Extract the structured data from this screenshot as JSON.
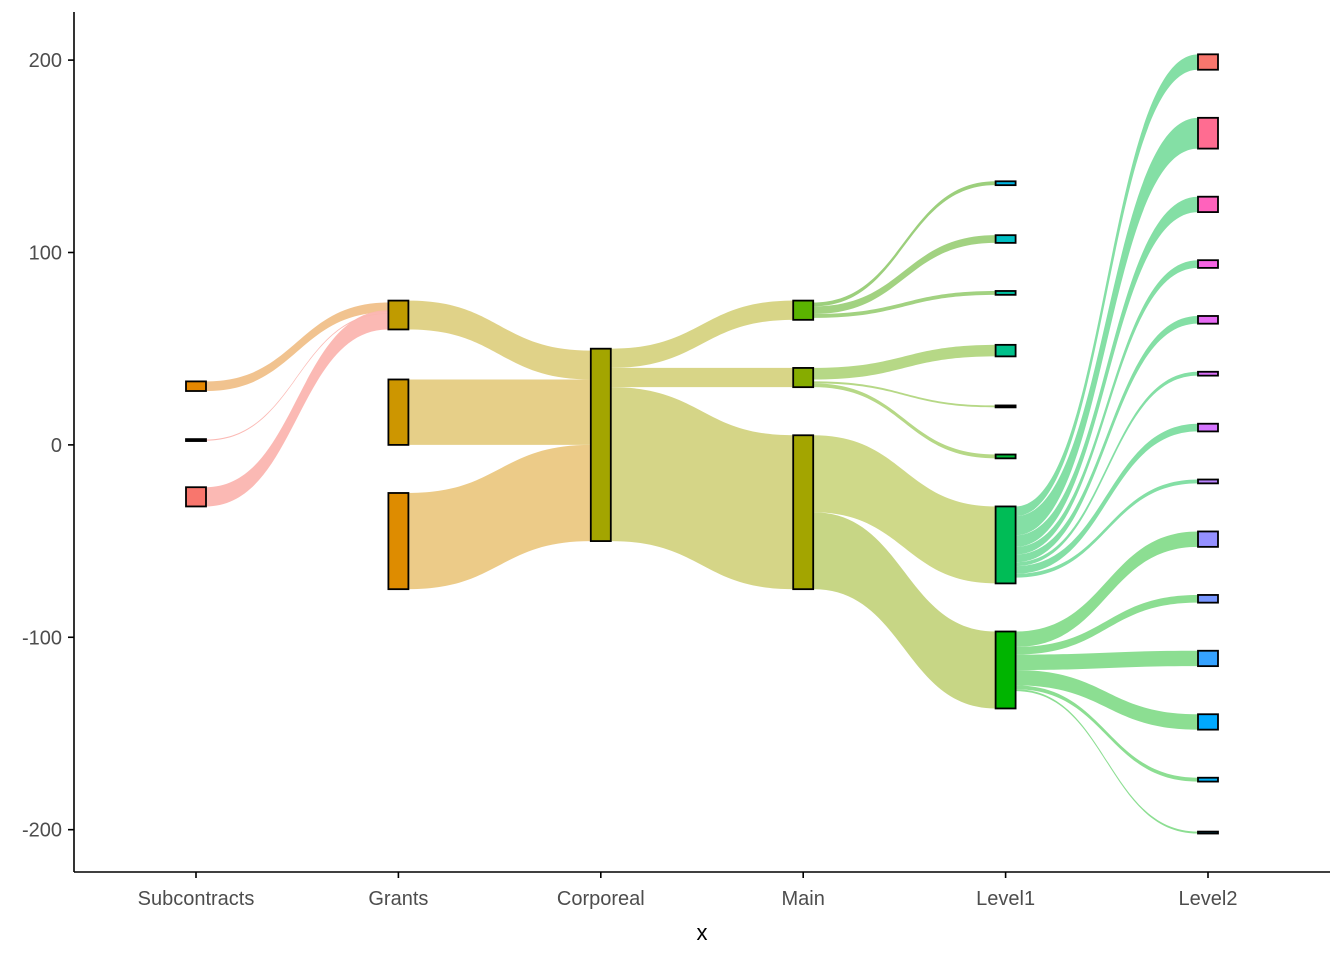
{
  "chart_data": {
    "type": "sankey",
    "title": "",
    "xlabel": "x",
    "ylabel": "",
    "ylim": [
      -222,
      225
    ],
    "y_ticks": [
      200,
      100,
      0,
      -100,
      -200
    ],
    "y_tick_labels": [
      "200",
      "100",
      "0",
      "-100",
      "-200"
    ],
    "stages": [
      "Subcontracts",
      "Grants",
      "Corporeal",
      "Main",
      "Level1",
      "Level2"
    ],
    "grid": false,
    "legend": "none",
    "nodes": [
      {
        "id": "s1",
        "stage": 0,
        "ymin": 28,
        "ymax": 33,
        "color": "#E58700"
      },
      {
        "id": "s2",
        "stage": 0,
        "ymin": 2,
        "ymax": 3,
        "color": "#000000"
      },
      {
        "id": "s3",
        "stage": 0,
        "ymin": -32,
        "ymax": -22,
        "color": "#F8766D"
      },
      {
        "id": "g1",
        "stage": 1,
        "ymin": 60,
        "ymax": 75,
        "color": "#C09B00"
      },
      {
        "id": "g2",
        "stage": 1,
        "ymin": 0,
        "ymax": 34,
        "color": "#CD9600"
      },
      {
        "id": "g3",
        "stage": 1,
        "ymin": -75,
        "ymax": -25,
        "color": "#DE8C00"
      },
      {
        "id": "c1",
        "stage": 2,
        "ymin": -50,
        "ymax": 50,
        "color": "#A3A500"
      },
      {
        "id": "m1",
        "stage": 3,
        "ymin": 65,
        "ymax": 75,
        "color": "#5BB300"
      },
      {
        "id": "m2",
        "stage": 3,
        "ymin": 30,
        "ymax": 40,
        "color": "#86AC00"
      },
      {
        "id": "m3",
        "stage": 3,
        "ymin": -75,
        "ymax": 5,
        "color": "#A3A500"
      },
      {
        "id": "l1a",
        "stage": 4,
        "ymin": 135,
        "ymax": 137,
        "color": "#00B8E7"
      },
      {
        "id": "l1b",
        "stage": 4,
        "ymin": 105,
        "ymax": 109,
        "color": "#00BFC4"
      },
      {
        "id": "l1c",
        "stage": 4,
        "ymin": 78,
        "ymax": 80,
        "color": "#00C1A3"
      },
      {
        "id": "l1d",
        "stage": 4,
        "ymin": 46,
        "ymax": 52,
        "color": "#00C08B"
      },
      {
        "id": "l1e",
        "stage": 4,
        "ymin": 19.5,
        "ymax": 20.5,
        "color": "#000000"
      },
      {
        "id": "l1f",
        "stage": 4,
        "ymin": -7,
        "ymax": -5,
        "color": "#00BA38"
      },
      {
        "id": "l1g",
        "stage": 4,
        "ymin": -72,
        "ymax": -32,
        "color": "#00BC56"
      },
      {
        "id": "l1h",
        "stage": 4,
        "ymin": -137,
        "ymax": -97,
        "color": "#00B400"
      },
      {
        "id": "l2a",
        "stage": 5,
        "ymin": 195,
        "ymax": 203,
        "color": "#F8766D"
      },
      {
        "id": "l2b",
        "stage": 5,
        "ymin": 154,
        "ymax": 170,
        "color": "#FF6C91"
      },
      {
        "id": "l2c",
        "stage": 5,
        "ymin": 121,
        "ymax": 129,
        "color": "#FF62BC"
      },
      {
        "id": "l2d",
        "stage": 5,
        "ymin": 92,
        "ymax": 96,
        "color": "#F564E3"
      },
      {
        "id": "l2e",
        "stage": 5,
        "ymin": 63,
        "ymax": 67,
        "color": "#E76BF3"
      },
      {
        "id": "l2f",
        "stage": 5,
        "ymin": 36,
        "ymax": 38,
        "color": "#DC71FA"
      },
      {
        "id": "l2g",
        "stage": 5,
        "ymin": 7,
        "ymax": 11,
        "color": "#D575FE"
      },
      {
        "id": "l2h",
        "stage": 5,
        "ymin": -20,
        "ymax": -18,
        "color": "#B983FF"
      },
      {
        "id": "l2i",
        "stage": 5,
        "ymin": -53,
        "ymax": -45,
        "color": "#9590FF"
      },
      {
        "id": "l2j",
        "stage": 5,
        "ymin": -82,
        "ymax": -78,
        "color": "#7997FF"
      },
      {
        "id": "l2k",
        "stage": 5,
        "ymin": -115,
        "ymax": -107,
        "color": "#35A2FF"
      },
      {
        "id": "l2l",
        "stage": 5,
        "ymin": -148,
        "ymax": -140,
        "color": "#00A9FF"
      },
      {
        "id": "l2m",
        "stage": 5,
        "ymin": -175,
        "ymax": -173,
        "color": "#00B0F6"
      },
      {
        "id": "l2n",
        "stage": 5,
        "ymin": -202,
        "ymax": -201,
        "color": "#00B4EF"
      }
    ],
    "flows": [
      {
        "stage": 0,
        "y0": [
          28,
          33
        ],
        "y1": [
          69,
          74
        ],
        "color": "#F0C089"
      },
      {
        "stage": 0,
        "y0": [
          2.2,
          2.8
        ],
        "y1": [
          68,
          68.6
        ],
        "color": "#FBB5B0"
      },
      {
        "stage": 0,
        "y0": [
          -32,
          -22
        ],
        "y1": [
          60,
          70
        ],
        "color": "#FBB5B0"
      },
      {
        "stage": 1,
        "y0": [
          60,
          75
        ],
        "y1": [
          34,
          49
        ],
        "color": "#DED082"
      },
      {
        "stage": 1,
        "y0": [
          0,
          34
        ],
        "y1": [
          0,
          34
        ],
        "color": "#E5CC82"
      },
      {
        "stage": 1,
        "y0": [
          -75,
          -25
        ],
        "y1": [
          -50,
          0
        ],
        "color": "#EBC882"
      },
      {
        "stage": 2,
        "y0": [
          40,
          50
        ],
        "y1": [
          65,
          75
        ],
        "color": "#D6D381"
      },
      {
        "stage": 2,
        "y0": [
          30,
          40
        ],
        "y1": [
          30,
          40
        ],
        "color": "#D6D381"
      },
      {
        "stage": 2,
        "y0": [
          -50,
          30
        ],
        "y1": [
          -75,
          5
        ],
        "color": "#D3D381"
      },
      {
        "stage": 3,
        "y0": [
          72,
          74
        ],
        "y1": [
          135,
          137
        ],
        "color": "#97CC75"
      },
      {
        "stage": 3,
        "y0": [
          68,
          72
        ],
        "y1": [
          105,
          109
        ],
        "color": "#9DD07A"
      },
      {
        "stage": 3,
        "y0": [
          66,
          68
        ],
        "y1": [
          78,
          80
        ],
        "color": "#9DD07A"
      },
      {
        "stage": 3,
        "y0": [
          34,
          40
        ],
        "y1": [
          46,
          52
        ],
        "color": "#B2D67F"
      },
      {
        "stage": 3,
        "y0": [
          32,
          33
        ],
        "y1": [
          19.5,
          20.5
        ],
        "color": "#B2D67F"
      },
      {
        "stage": 3,
        "y0": [
          30,
          32
        ],
        "y1": [
          -7,
          -5
        ],
        "color": "#B2D67F"
      },
      {
        "stage": 3,
        "y0": [
          -35,
          5
        ],
        "y1": [
          -72,
          -32
        ],
        "color": "#CCD783"
      },
      {
        "stage": 3,
        "y0": [
          -75,
          -35
        ],
        "y1": [
          -137,
          -97
        ],
        "color": "#C4D47E"
      },
      {
        "stage": 4,
        "y0": [
          -37,
          -32
        ],
        "y1": [
          195,
          203
        ],
        "color": "#7DDDA0"
      },
      {
        "stage": 4,
        "y0": [
          -47,
          -37
        ],
        "y1": [
          154,
          170
        ],
        "color": "#7DDDA0"
      },
      {
        "stage": 4,
        "y0": [
          -53,
          -47
        ],
        "y1": [
          121,
          129
        ],
        "color": "#7DDDA0"
      },
      {
        "stage": 4,
        "y0": [
          -57,
          -53
        ],
        "y1": [
          92,
          96
        ],
        "color": "#7DDDA0"
      },
      {
        "stage": 4,
        "y0": [
          -61,
          -57
        ],
        "y1": [
          63,
          67
        ],
        "color": "#7DDDA0"
      },
      {
        "stage": 4,
        "y0": [
          -63,
          -61
        ],
        "y1": [
          36,
          38
        ],
        "color": "#7DDDA0"
      },
      {
        "stage": 4,
        "y0": [
          -67,
          -63
        ],
        "y1": [
          7,
          11
        ],
        "color": "#7DDDA0"
      },
      {
        "stage": 4,
        "y0": [
          -69,
          -67
        ],
        "y1": [
          -20,
          -18
        ],
        "color": "#7DDDA0"
      },
      {
        "stage": 4,
        "y0": [
          -105,
          -97
        ],
        "y1": [
          -53,
          -45
        ],
        "color": "#86DC8C"
      },
      {
        "stage": 4,
        "y0": [
          -109,
          -105
        ],
        "y1": [
          -82,
          -78
        ],
        "color": "#86DC8C"
      },
      {
        "stage": 4,
        "y0": [
          -117,
          -109
        ],
        "y1": [
          -115,
          -107
        ],
        "color": "#86DC8C"
      },
      {
        "stage": 4,
        "y0": [
          -125,
          -117
        ],
        "y1": [
          -148,
          -140
        ],
        "color": "#86DC8C"
      },
      {
        "stage": 4,
        "y0": [
          -127,
          -125
        ],
        "y1": [
          -175,
          -173
        ],
        "color": "#86DC8C"
      },
      {
        "stage": 4,
        "y0": [
          -128,
          -127
        ],
        "y1": [
          -202,
          -201
        ],
        "color": "#86DC8C"
      }
    ]
  }
}
